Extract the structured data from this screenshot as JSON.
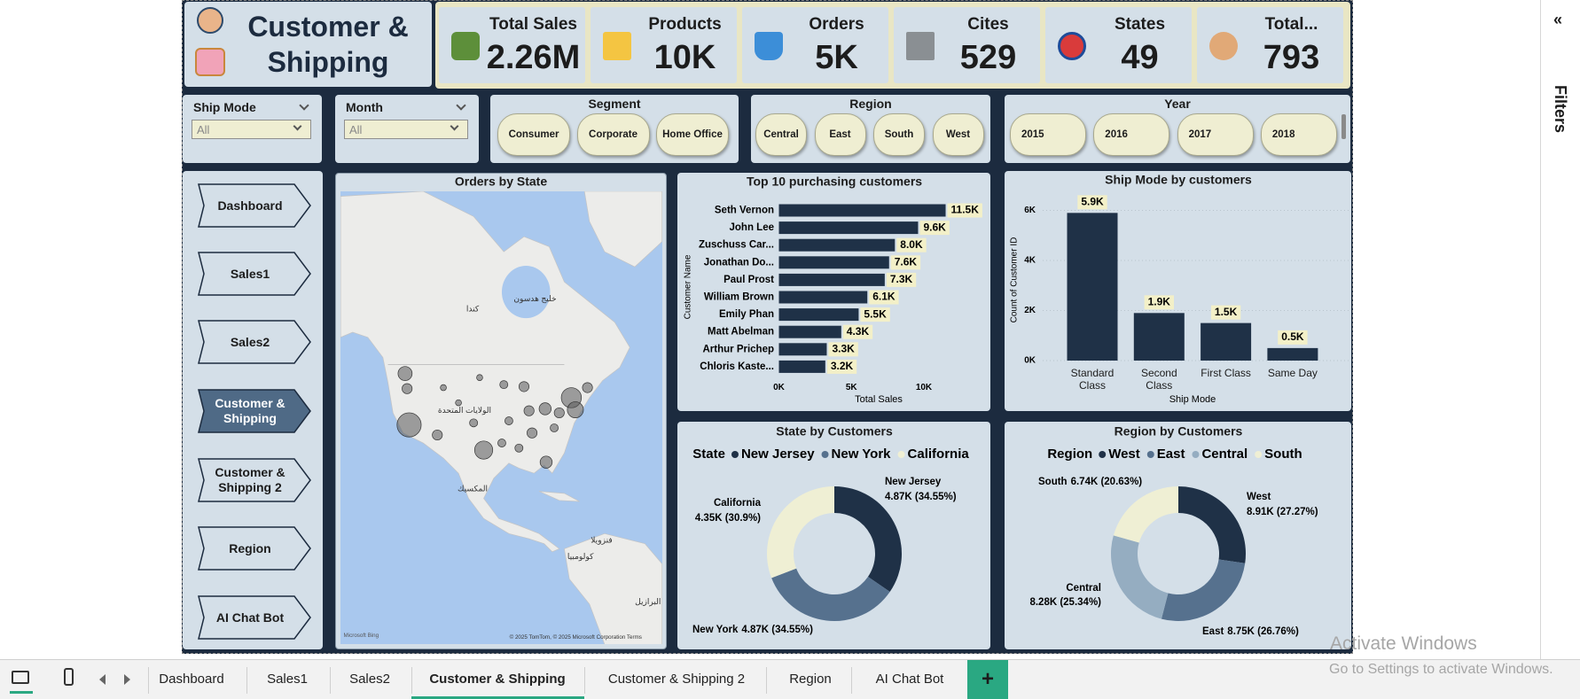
{
  "header": {
    "title": "Customer & Shipping"
  },
  "kpis": [
    {
      "label": "Total Sales",
      "value": "2.26M"
    },
    {
      "label": "Products",
      "value": "10K"
    },
    {
      "label": "Orders",
      "value": "5K"
    },
    {
      "label": "Cites",
      "value": "529"
    },
    {
      "label": "States",
      "value": "49"
    },
    {
      "label": "Total...",
      "value": "793"
    }
  ],
  "slicers": {
    "dropdowns": [
      {
        "label": "Ship Mode",
        "value": "All"
      },
      {
        "label": "Month",
        "value": "All"
      }
    ],
    "buttons": [
      {
        "label": "Segment",
        "options": [
          "Consumer",
          "Corporate",
          "Home Office"
        ]
      },
      {
        "label": "Region",
        "options": [
          "Central",
          "East",
          "South",
          "West"
        ]
      },
      {
        "label": "Year",
        "options": [
          "2015",
          "2016",
          "2017",
          "2018"
        ]
      }
    ]
  },
  "nav": {
    "items": [
      "Dashboard",
      "Sales1",
      "Sales2",
      "Customer & Shipping",
      "Customer & Shipping 2",
      "Region",
      "AI Chat Bot"
    ],
    "active": 3
  },
  "map": {
    "title": "Orders by State",
    "labels": [
      "كندا",
      "خليج هدسون",
      "الولايات المتحدة",
      "المكسيك",
      "فنزويلا",
      "كولومبيا",
      "البرازيل"
    ],
    "credit": "Microsoft Bing",
    "attribution": "© 2025 TomTom, © 2025 Microsoft Corporation Terms"
  },
  "chart_data": [
    {
      "type": "bar",
      "orientation": "horizontal",
      "title": "Top 10 purchasing customers",
      "categories": [
        "Seth Vernon",
        "John Lee",
        "Zuschuss Car...",
        "Jonathan Do...",
        "Paul Prost",
        "William Brown",
        "Emily Phan",
        "Matt Abelman",
        "Arthur Prichep",
        "Chloris Kaste..."
      ],
      "values": [
        11500,
        9600,
        8000,
        7600,
        7300,
        6100,
        5500,
        4300,
        3300,
        3200
      ],
      "value_labels": [
        "11.5K",
        "9.6K",
        "8.0K",
        "7.6K",
        "7.3K",
        "6.1K",
        "5.5K",
        "4.3K",
        "3.3K",
        "3.2K"
      ],
      "color": "#1f3147",
      "xlim": [
        0,
        12000
      ],
      "xticks": [
        {
          "value": 0,
          "label": "0K"
        },
        {
          "value": 5000,
          "label": "5K"
        },
        {
          "value": 10000,
          "label": "10K"
        }
      ],
      "xlabel": "Total Sales",
      "ylabel": "Customer Name"
    },
    {
      "type": "bar",
      "title": "Ship Mode by customers",
      "categories": [
        "Standard Class",
        "Second Class",
        "First Class",
        "Same Day"
      ],
      "values": [
        5900,
        1900,
        1500,
        500
      ],
      "value_labels": [
        "5.9K",
        "1.9K",
        "1.5K",
        "0.5K"
      ],
      "color": "#1f3147",
      "ylim": [
        0,
        6000
      ],
      "yticks": [
        {
          "value": 0,
          "label": "0K"
        },
        {
          "value": 2000,
          "label": "2K"
        },
        {
          "value": 4000,
          "label": "4K"
        },
        {
          "value": 6000,
          "label": "6K"
        }
      ],
      "grid": true,
      "xlabel": "Ship Mode",
      "ylabel": "Count of Customer ID"
    },
    {
      "type": "donut",
      "title": "State by Customers",
      "legend_title": "State",
      "categories": [
        "New Jersey",
        "New York",
        "California"
      ],
      "values": [
        4870,
        4870,
        4350
      ],
      "value_labels": [
        "4.87K (34.55%)",
        "4.87K (34.55%)",
        "4.35K (30.9%)"
      ],
      "colors": [
        "#1f3147",
        "#56718e",
        "#efefd4"
      ]
    },
    {
      "type": "donut",
      "title": "Region by Customers",
      "legend_title": "Region",
      "categories": [
        "West",
        "East",
        "Central",
        "South"
      ],
      "values": [
        8910,
        8750,
        8280,
        6740
      ],
      "value_labels": [
        "8.91K (27.27%)",
        "8.75K (26.76%)",
        "8.28K (25.34%)",
        "6.74K (20.63%)"
      ],
      "colors": [
        "#1f3147",
        "#56718e",
        "#95adc1",
        "#efefd4"
      ]
    }
  ],
  "filters_pane": {
    "collapse": "«",
    "title": "Filters"
  },
  "tabs": {
    "items": [
      "Dashboard",
      "Sales1",
      "Sales2",
      "Customer & Shipping",
      "Customer & Shipping 2",
      "Region",
      "AI Chat Bot"
    ],
    "active": 3,
    "add": "+"
  },
  "watermark": {
    "title": "Activate Windows",
    "text": "Go to Settings to activate Windows."
  }
}
